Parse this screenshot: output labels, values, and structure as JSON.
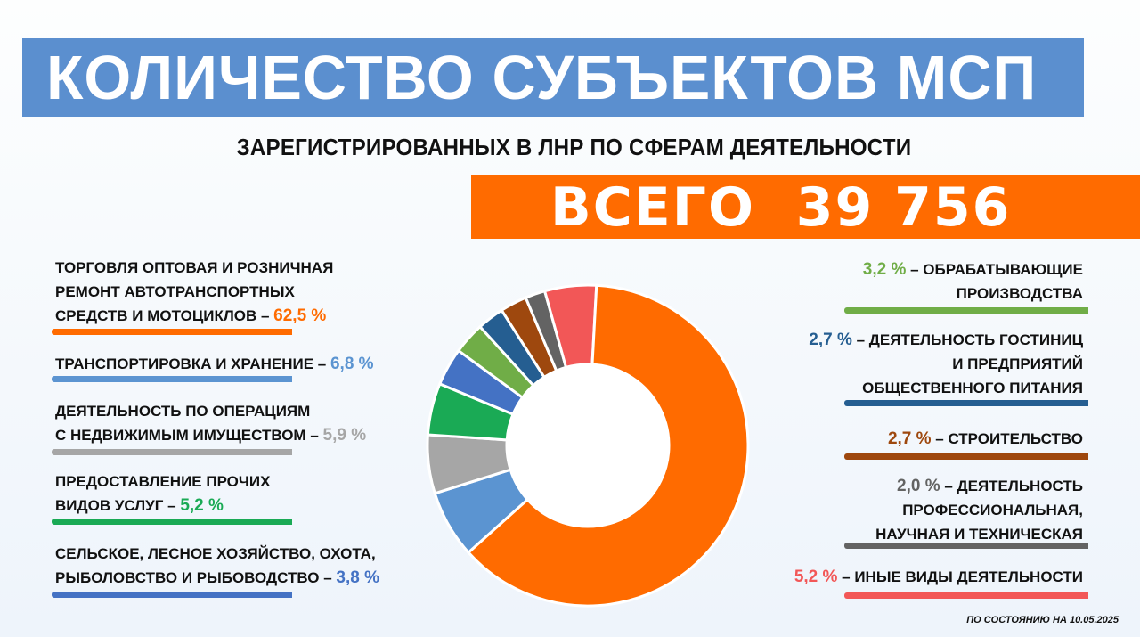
{
  "header": {
    "title": "КОЛИЧЕСТВО СУБЪЕКТОВ МСП",
    "subtitle": "ЗАРЕГИСТРИРОВАННЫХ В ЛНР ПО СФЕРАМ ДЕЯТЕЛЬНОСТИ",
    "total_label": "ВСЕГО",
    "total_value": "39 756"
  },
  "footnote": "ПО СОСТОЯНИЮ НА 10.05.2025",
  "chart_data": {
    "type": "pie",
    "variant": "donut",
    "title": "КОЛИЧЕСТВО СУБЪЕКТОВ МСП",
    "subtitle": "ЗАРЕГИСТРИРОВАННЫХ В ЛНР ПО СФЕРАМ ДЕЯТЕЛЬНОСТИ",
    "total": "39 756",
    "categories": [
      {
        "label": "ТОРГОВЛЯ ОПТОВАЯ И РОЗНИЧНАЯ РЕМОНТ АВТОТРАНСПОРТНЫХ СРЕДСТВ И МОТОЦИКЛОВ",
        "value": 62.5,
        "value_text": "62,5 %",
        "color": "#ff6b00"
      },
      {
        "label": "ТРАНСПОРТИРОВКА И ХРАНЕНИЕ",
        "value": 6.8,
        "value_text": "6,8 %",
        "color": "#5b94d1"
      },
      {
        "label": "ДЕЯТЕЛЬНОСТЬ ПО ОПЕРАЦИЯМ С НЕДВИЖИМЫМ ИМУЩЕСТВОМ",
        "value": 5.9,
        "value_text": "5,9 %",
        "color": "#a6a6a6"
      },
      {
        "label": "ПРЕДОСТАВЛЕНИЕ ПРОЧИХ ВИДОВ УСЛУГ",
        "value": 5.2,
        "value_text": "5,2 %",
        "color": "#1aaa55"
      },
      {
        "label": "СЕЛЬСКОЕ, ЛЕСНОЕ ХОЗЯЙСТВО, ОХОТА, РЫБОЛОВСТВО И РЫБОВОДСТВО",
        "value": 3.8,
        "value_text": "3,8 %",
        "color": "#4472c4"
      },
      {
        "label": "ОБРАБАТЫВАЮЩИЕ ПРОИЗВОДСТВА",
        "value": 3.2,
        "value_text": "3,2 %",
        "color": "#70ad47"
      },
      {
        "label": "ДЕЯТЕЛЬНОСТЬ ГОСТИНИЦ И ПРЕДПРИЯТИЙ ОБЩЕСТВЕННОГО ПИТАНИЯ",
        "value": 2.7,
        "value_text": "2,7 %",
        "color": "#255e91"
      },
      {
        "label": "СТРОИТЕЛЬСТВО",
        "value": 2.7,
        "value_text": "2,7 %",
        "color": "#9e480e"
      },
      {
        "label": "ДЕЯТЕЛЬНОСТЬ ПРОФЕССИОНАЛЬНАЯ, НАУЧНАЯ И ТЕХНИЧЕСКАЯ",
        "value": 2.0,
        "value_text": "2,0 %",
        "color": "#636363"
      },
      {
        "label": "ИНЫЕ ВИДЫ ДЕЯТЕЛЬНОСТИ",
        "value": 5.2,
        "value_text": "5,2 %",
        "color": "#f25757"
      }
    ]
  },
  "legend": {
    "left": [
      {
        "lines": [
          "ТОРГОВЛЯ ОПТОВАЯ И РОЗНИЧНАЯ",
          "РЕМОНТ АВТОТРАНСПОРТНЫХ",
          "СРЕДСТВ И МОТОЦИКЛОВ"
        ],
        "sep": " – ",
        "pct": "62,5 %",
        "color": "#ff6b00"
      },
      {
        "lines": [
          "ТРАНСПОРТИРОВКА И ХРАНЕНИЕ"
        ],
        "sep": " – ",
        "pct": "6,8 %",
        "color": "#5b94d1"
      },
      {
        "lines": [
          "ДЕЯТЕЛЬНОСТЬ ПО ОПЕРАЦИЯМ",
          "С НЕДВИЖИМЫМ ИМУЩЕСТВОМ"
        ],
        "sep": " – ",
        "pct": "5,9 %",
        "color": "#a6a6a6"
      },
      {
        "lines": [
          "ПРЕДОСТАВЛЕНИЕ ПРОЧИХ",
          "ВИДОВ УСЛУГ"
        ],
        "sep": " – ",
        "pct": "5,2 %",
        "color": "#1aaa55"
      },
      {
        "lines": [
          "СЕЛЬСКОЕ, ЛЕСНОЕ ХОЗЯЙСТВО, ОХОТА,",
          "РЫБОЛОВСТВО И РЫБОВОДСТВО"
        ],
        "sep": " – ",
        "pct": "3,8 %",
        "color": "#4472c4"
      }
    ],
    "right": [
      {
        "pct": "3,2 %",
        "sep": " – ",
        "lines": [
          "ОБРАБАТЫВАЮЩИЕ",
          "ПРОИЗВОДСТВА"
        ],
        "color": "#70ad47"
      },
      {
        "pct": "2,7 %",
        "sep": " – ",
        "lines": [
          "ДЕЯТЕЛЬНОСТЬ ГОСТИНИЦ",
          "И ПРЕДПРИЯТИЙ",
          "ОБЩЕСТВЕННОГО ПИТАНИЯ"
        ],
        "color": "#255e91"
      },
      {
        "pct": "2,7 %",
        "sep": " – ",
        "lines": [
          "СТРОИТЕЛЬСТВО"
        ],
        "color": "#9e480e"
      },
      {
        "pct": "2,0 %",
        "sep": " – ",
        "lines": [
          "ДЕЯТЕЛЬНОСТЬ",
          "ПРОФЕССИОНАЛЬНАЯ,",
          "НАУЧНАЯ И ТЕХНИЧЕСКАЯ"
        ],
        "color": "#636363"
      },
      {
        "pct": "5,2 %",
        "sep": " – ",
        "lines": [
          "ИНЫЕ ВИДЫ ДЕЯТЕЛЬНОСТИ"
        ],
        "color": "#f25757"
      }
    ]
  }
}
